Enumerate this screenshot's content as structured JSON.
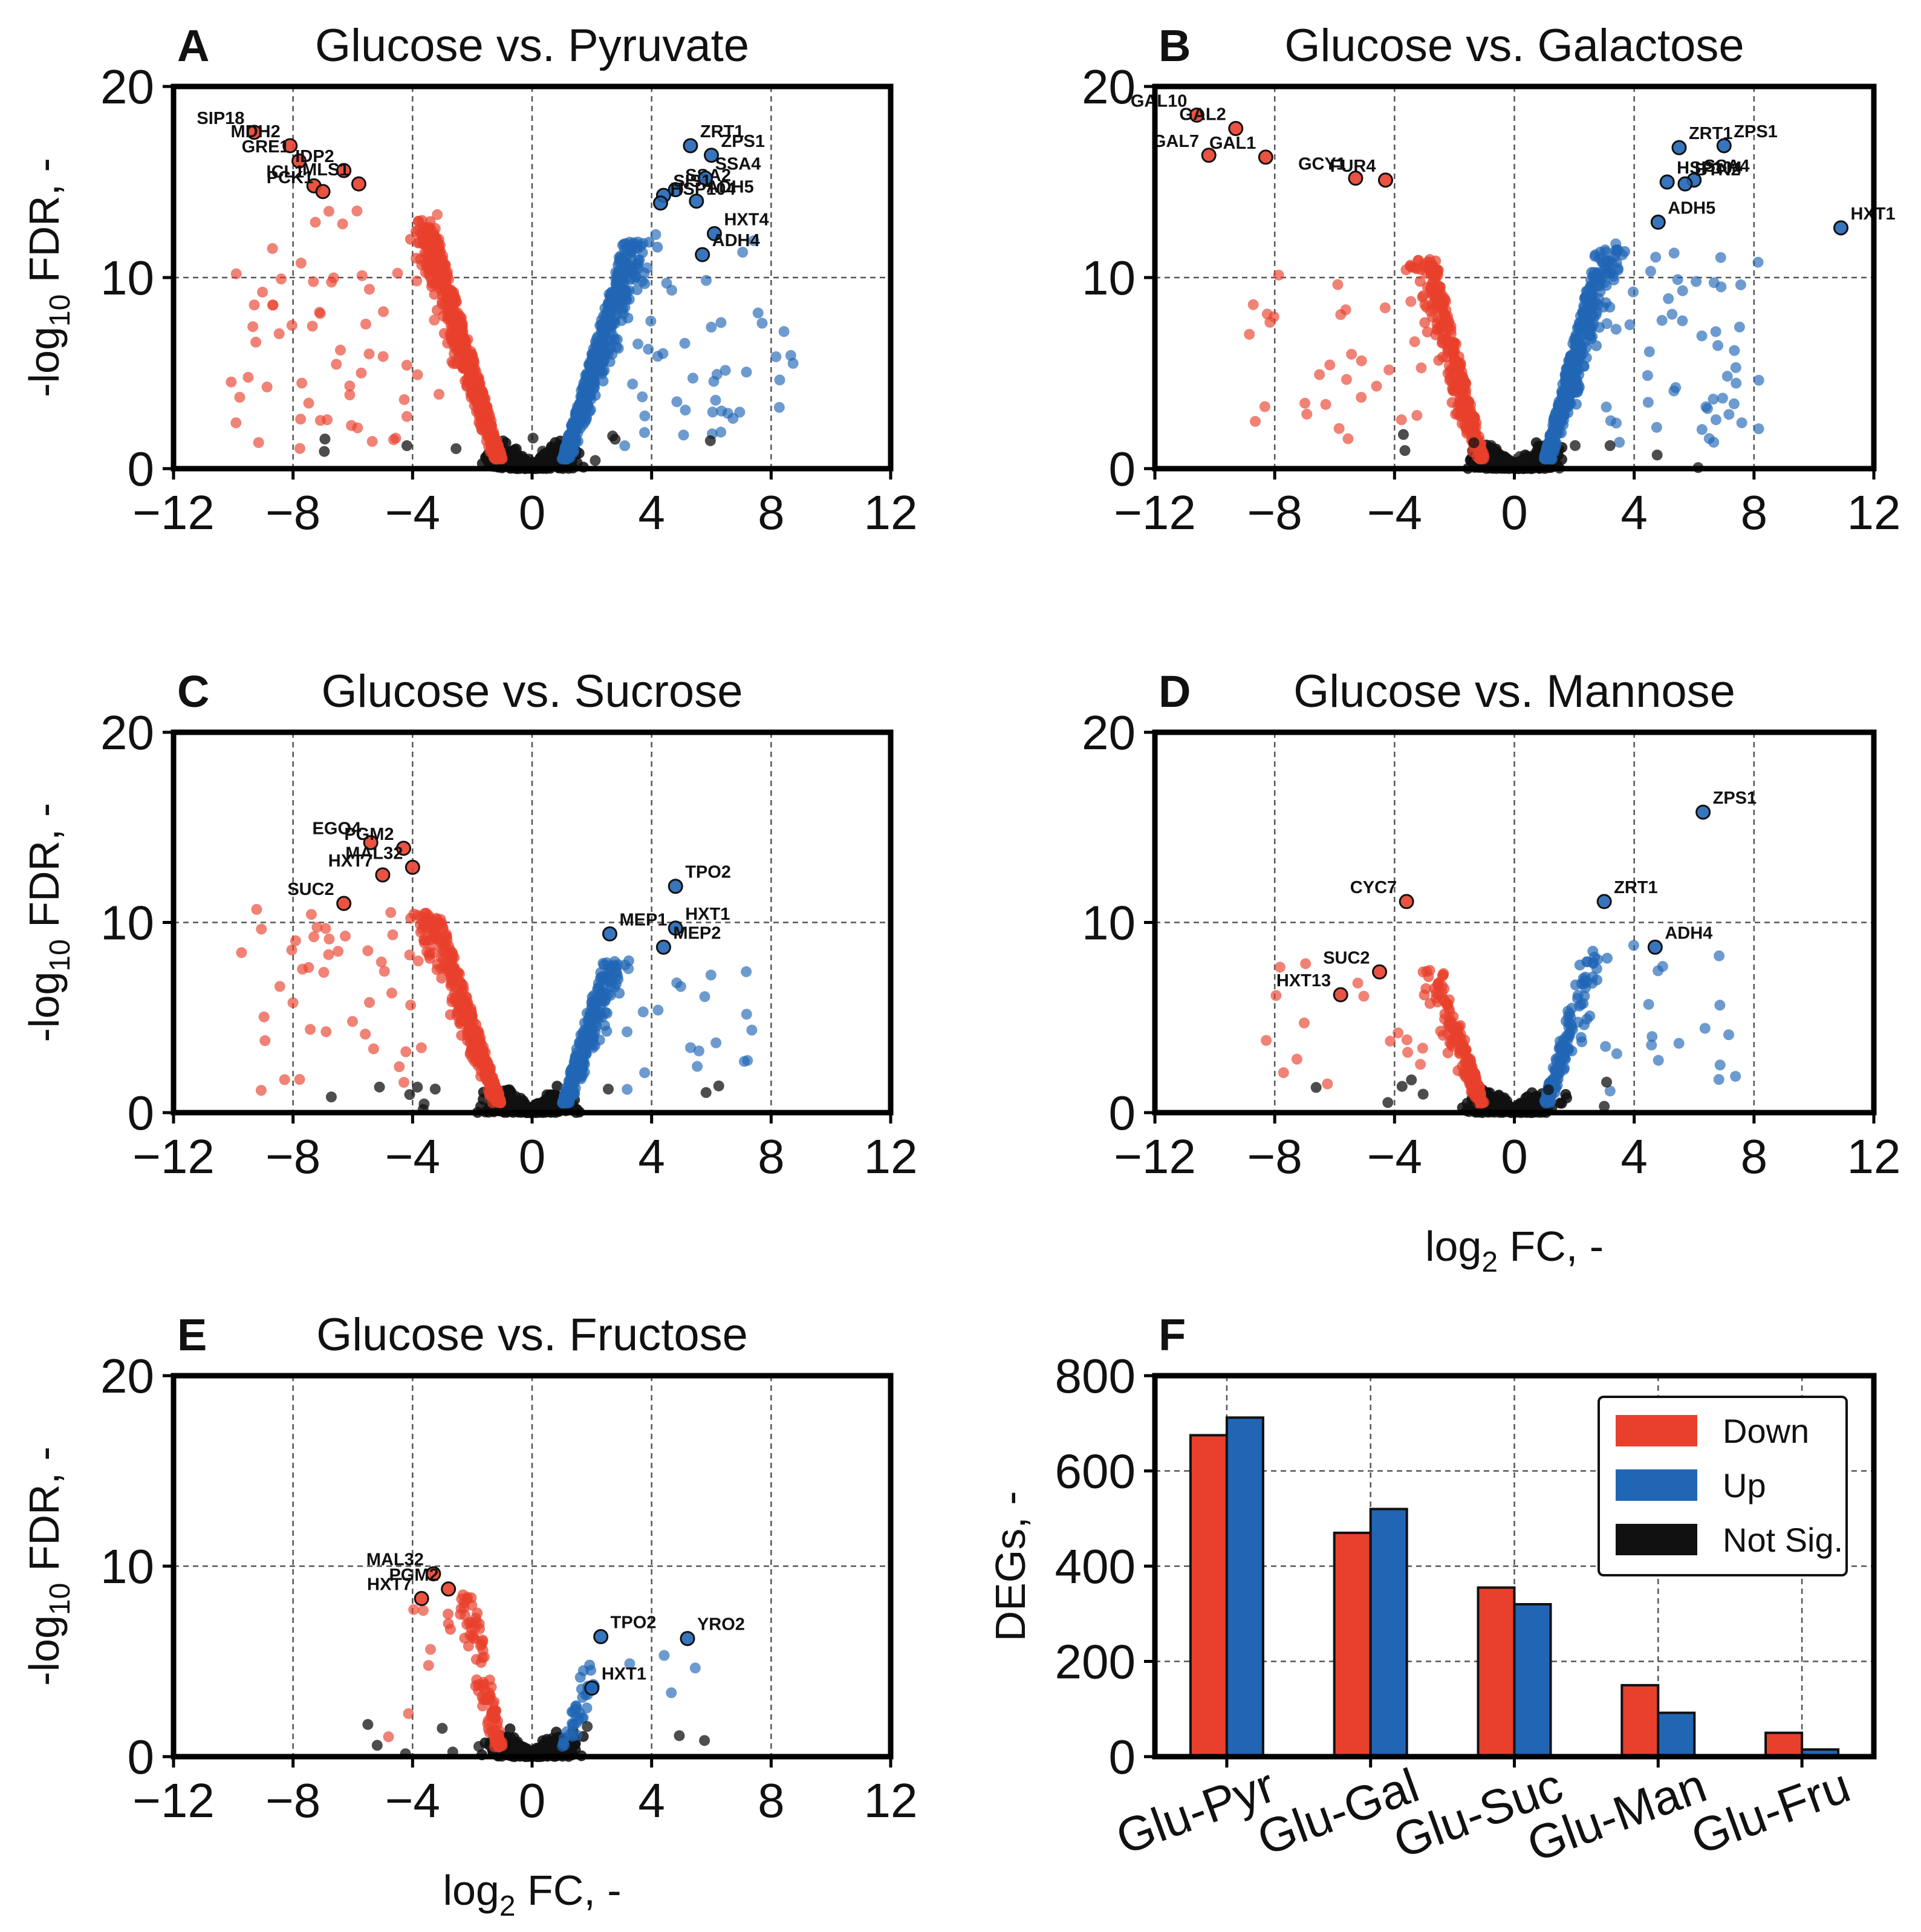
{
  "colors": {
    "down": "#e8402c",
    "up": "#2166b5",
    "not_sig": "#111111",
    "grid": "#555555"
  },
  "volcano_axes": {
    "x_ticks": [
      "−12",
      "−8",
      "−4",
      "0",
      "4",
      "8",
      "12"
    ],
    "y_ticks": [
      "0",
      "10",
      "20"
    ],
    "xlabel_main": "log",
    "xlabel_sub": "2",
    "xlabel_tail": " FC, -",
    "ylabel_pre": "-log",
    "ylabel_sub": "10",
    "ylabel_tail": " FDR, -"
  },
  "chart_data": [
    {
      "type": "scatter",
      "panel": "A",
      "title": "Glucose vs. Pyruvate",
      "xlim": [
        -12,
        12
      ],
      "ylim": [
        0,
        20
      ],
      "significance_lines": {
        "x": [
          -8,
          -4,
          4,
          8
        ],
        "y": 10
      },
      "labeled_genes": [
        {
          "name": "SIP18",
          "x": -9.3,
          "y": 17.6,
          "group": "down"
        },
        {
          "name": "MDH2",
          "x": -8.1,
          "y": 16.9,
          "group": "down"
        },
        {
          "name": "GRE1",
          "x": -7.8,
          "y": 16.1,
          "group": "down"
        },
        {
          "name": "IDP2",
          "x": -6.3,
          "y": 15.6,
          "group": "down"
        },
        {
          "name": "ICL1",
          "x": -7.3,
          "y": 14.8,
          "group": "down"
        },
        {
          "name": "MLS1",
          "x": -5.8,
          "y": 14.9,
          "group": "down"
        },
        {
          "name": "PCK1",
          "x": -7.0,
          "y": 14.5,
          "group": "down"
        },
        {
          "name": "ZRT1",
          "x": 5.3,
          "y": 16.9,
          "group": "up"
        },
        {
          "name": "ZPS1",
          "x": 6.0,
          "y": 16.4,
          "group": "up"
        },
        {
          "name": "SSA2",
          "x": 4.8,
          "y": 14.6,
          "group": "up"
        },
        {
          "name": "SSA4",
          "x": 5.8,
          "y": 15.2,
          "group": "up"
        },
        {
          "name": "SIS1",
          "x": 4.4,
          "y": 14.3,
          "group": "up"
        },
        {
          "name": "ADH5",
          "x": 5.5,
          "y": 14.0,
          "group": "up"
        },
        {
          "name": "HSP104",
          "x": 4.3,
          "y": 13.9,
          "group": "up"
        },
        {
          "name": "HXT4",
          "x": 6.1,
          "y": 12.3,
          "group": "up"
        },
        {
          "name": "ADH4",
          "x": 5.7,
          "y": 11.2,
          "group": "up"
        }
      ]
    },
    {
      "type": "scatter",
      "panel": "B",
      "title": "Glucose vs. Galactose",
      "xlim": [
        -12,
        12
      ],
      "ylim": [
        0,
        20
      ],
      "significance_lines": {
        "x": [
          -8,
          -4,
          4,
          8
        ],
        "y": 10
      },
      "labeled_genes": [
        {
          "name": "GAL10",
          "x": -10.6,
          "y": 18.5,
          "group": "down"
        },
        {
          "name": "GAL2",
          "x": -9.3,
          "y": 17.8,
          "group": "down"
        },
        {
          "name": "GAL1",
          "x": -8.3,
          "y": 16.3,
          "group": "down"
        },
        {
          "name": "GAL7",
          "x": -10.2,
          "y": 16.4,
          "group": "down"
        },
        {
          "name": "GCY1",
          "x": -5.3,
          "y": 15.2,
          "group": "down"
        },
        {
          "name": "FUR4",
          "x": -4.3,
          "y": 15.1,
          "group": "down"
        },
        {
          "name": "ZRT1",
          "x": 5.5,
          "y": 16.8,
          "group": "up"
        },
        {
          "name": "ZPS1",
          "x": 7.0,
          "y": 16.9,
          "group": "up"
        },
        {
          "name": "HSP104",
          "x": 5.1,
          "y": 15.0,
          "group": "up"
        },
        {
          "name": "SSA4",
          "x": 6.0,
          "y": 15.1,
          "group": "up"
        },
        {
          "name": "BTN2",
          "x": 5.7,
          "y": 14.9,
          "group": "up"
        },
        {
          "name": "ADH5",
          "x": 4.8,
          "y": 12.9,
          "group": "up"
        },
        {
          "name": "HXT1",
          "x": 10.9,
          "y": 12.6,
          "group": "up"
        }
      ]
    },
    {
      "type": "scatter",
      "panel": "C",
      "title": "Glucose vs. Sucrose",
      "xlim": [
        -12,
        12
      ],
      "ylim": [
        0,
        20
      ],
      "significance_lines": {
        "x": [
          -8,
          -4,
          4,
          8
        ],
        "y": 10
      },
      "labeled_genes": [
        {
          "name": "EGO4",
          "x": -5.4,
          "y": 14.2,
          "group": "down"
        },
        {
          "name": "PGM2",
          "x": -4.3,
          "y": 13.9,
          "group": "down"
        },
        {
          "name": "MAL32",
          "x": -4.0,
          "y": 12.9,
          "group": "down"
        },
        {
          "name": "HXT7",
          "x": -5.0,
          "y": 12.5,
          "group": "down"
        },
        {
          "name": "SUC2",
          "x": -6.3,
          "y": 11.0,
          "group": "down"
        },
        {
          "name": "TPO2",
          "x": 4.8,
          "y": 11.9,
          "group": "up"
        },
        {
          "name": "HXT1",
          "x": 4.8,
          "y": 9.7,
          "group": "up"
        },
        {
          "name": "MEP1",
          "x": 2.6,
          "y": 9.4,
          "group": "up"
        },
        {
          "name": "MEP2",
          "x": 4.4,
          "y": 8.7,
          "group": "up"
        }
      ]
    },
    {
      "type": "scatter",
      "panel": "D",
      "title": "Glucose vs. Mannose",
      "xlim": [
        -12,
        12
      ],
      "ylim": [
        0,
        20
      ],
      "significance_lines": {
        "x": [
          -8,
          -4,
          4,
          8
        ],
        "y": 10
      },
      "labeled_genes": [
        {
          "name": "CYC7",
          "x": -3.6,
          "y": 11.1,
          "group": "down"
        },
        {
          "name": "SUC2",
          "x": -4.5,
          "y": 7.4,
          "group": "down"
        },
        {
          "name": "HXT13",
          "x": -5.8,
          "y": 6.2,
          "group": "down"
        },
        {
          "name": "ZPS1",
          "x": 6.3,
          "y": 15.8,
          "group": "up"
        },
        {
          "name": "ZRT1",
          "x": 3.0,
          "y": 11.1,
          "group": "up"
        },
        {
          "name": "ADH4",
          "x": 4.7,
          "y": 8.7,
          "group": "up"
        }
      ]
    },
    {
      "type": "scatter",
      "panel": "E",
      "title": "Glucose vs. Fructose",
      "xlim": [
        -12,
        12
      ],
      "ylim": [
        0,
        20
      ],
      "significance_lines": {
        "x": [
          -8,
          -4,
          4,
          8
        ],
        "y": 10
      },
      "labeled_genes": [
        {
          "name": "MAL32",
          "x": -3.3,
          "y": 9.6,
          "group": "down"
        },
        {
          "name": "PGM2",
          "x": -2.8,
          "y": 8.8,
          "group": "down"
        },
        {
          "name": "HXT7",
          "x": -3.7,
          "y": 8.3,
          "group": "down"
        },
        {
          "name": "TPO2",
          "x": 2.3,
          "y": 6.3,
          "group": "up"
        },
        {
          "name": "YRO2",
          "x": 5.2,
          "y": 6.2,
          "group": "up"
        },
        {
          "name": "HXT1",
          "x": 2.0,
          "y": 3.6,
          "group": "up"
        }
      ]
    },
    {
      "type": "bar",
      "panel": "F",
      "title": "",
      "categories": [
        "Glu-Pyr",
        "Glu-Gal",
        "Glu-Suc",
        "Glu-Man",
        "Glu-Fru"
      ],
      "series": [
        {
          "name": "Down",
          "values": [
            675,
            470,
            355,
            150,
            50
          ]
        },
        {
          "name": "Up",
          "values": [
            712,
            520,
            320,
            92,
            15
          ]
        }
      ],
      "legend": [
        "Down",
        "Up",
        "Not Sig."
      ],
      "legend_position": "top-right",
      "ylabel": "DEGs, -",
      "ylim": [
        0,
        800
      ],
      "y_ticks": [
        "0",
        "200",
        "400",
        "600",
        "800"
      ]
    }
  ]
}
